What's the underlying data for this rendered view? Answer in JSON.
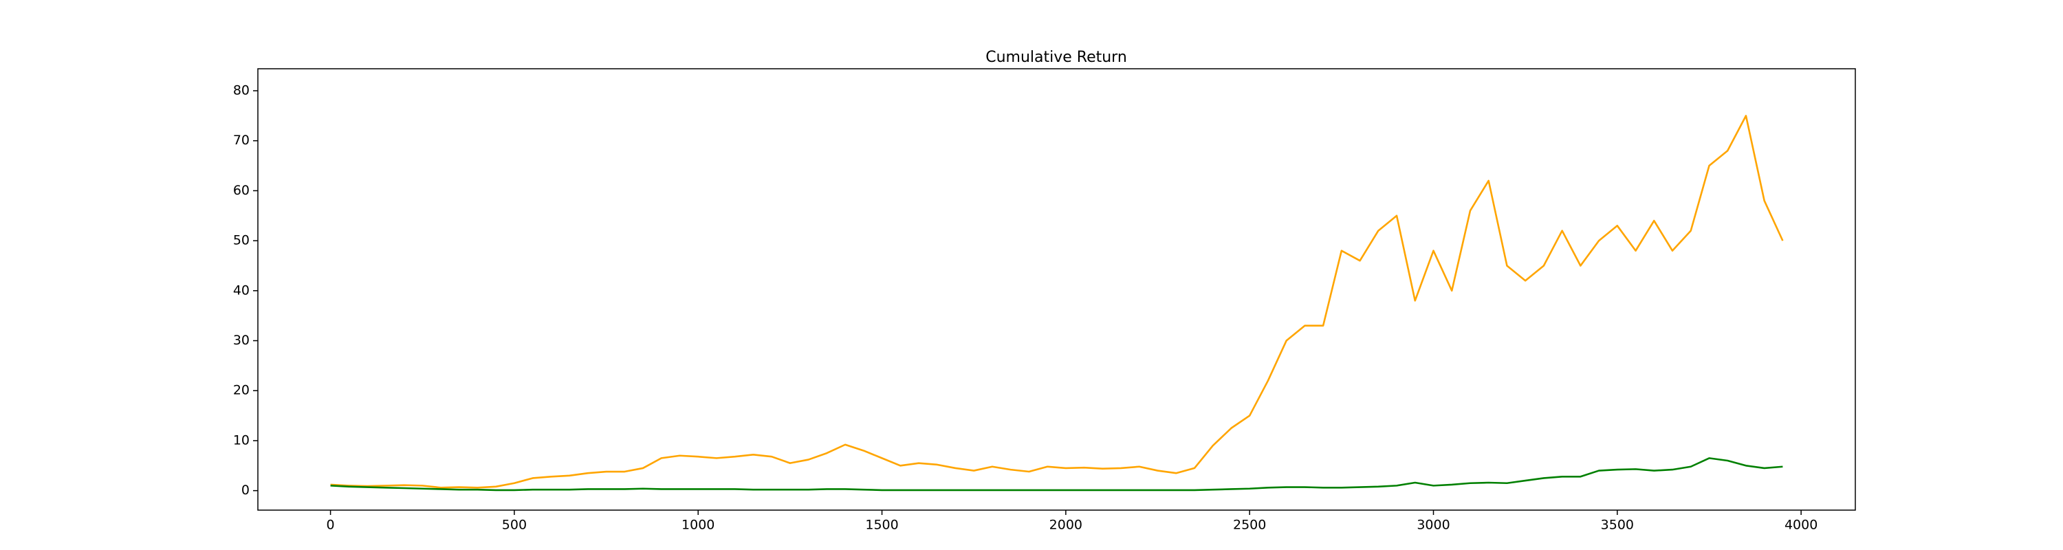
{
  "chart_data": {
    "type": "line",
    "title": "Cumulative Return",
    "x": [
      0,
      50,
      100,
      150,
      200,
      250,
      300,
      350,
      400,
      450,
      500,
      550,
      600,
      650,
      700,
      750,
      800,
      850,
      900,
      950,
      1000,
      1050,
      1100,
      1150,
      1200,
      1250,
      1300,
      1350,
      1400,
      1450,
      1500,
      1550,
      1600,
      1650,
      1700,
      1750,
      1800,
      1850,
      1900,
      1950,
      2000,
      2050,
      2100,
      2150,
      2200,
      2250,
      2300,
      2350,
      2400,
      2450,
      2500,
      2550,
      2600,
      2650,
      2700,
      2750,
      2800,
      2850,
      2900,
      2950,
      3000,
      3050,
      3100,
      3150,
      3200,
      3250,
      3300,
      3350,
      3400,
      3450,
      3500,
      3550,
      3600,
      3650,
      3700,
      3750,
      3800,
      3850,
      3900,
      3950
    ],
    "series": [
      {
        "color": "orange",
        "values": [
          1.2,
          1.0,
          0.9,
          1.0,
          1.1,
          1.0,
          0.6,
          0.7,
          0.6,
          0.8,
          1.5,
          2.5,
          2.8,
          3.0,
          3.5,
          3.8,
          3.8,
          4.5,
          6.5,
          7.0,
          6.8,
          6.5,
          6.8,
          7.2,
          6.8,
          5.5,
          6.2,
          7.5,
          9.2,
          8.0,
          6.5,
          5.0,
          5.5,
          5.2,
          4.5,
          4.0,
          4.8,
          4.2,
          3.8,
          4.8,
          4.5,
          4.6,
          4.4,
          4.5,
          4.8,
          4.0,
          3.5,
          4.5,
          9.0,
          12.5,
          15,
          22,
          30,
          33,
          33,
          48,
          46,
          52,
          55,
          38,
          48,
          40,
          56,
          62,
          45,
          42,
          45,
          52,
          45,
          50,
          53,
          48,
          54,
          48,
          52,
          65,
          68,
          75,
          58,
          50
        ]
      },
      {
        "color": "green",
        "values": [
          1.0,
          0.8,
          0.7,
          0.6,
          0.5,
          0.4,
          0.3,
          0.2,
          0.2,
          0.1,
          0.1,
          0.2,
          0.2,
          0.2,
          0.3,
          0.3,
          0.3,
          0.4,
          0.3,
          0.3,
          0.3,
          0.3,
          0.3,
          0.2,
          0.2,
          0.2,
          0.2,
          0.3,
          0.3,
          0.2,
          0.1,
          0.1,
          0.1,
          0.1,
          0.1,
          0.1,
          0.1,
          0.1,
          0.1,
          0.1,
          0.1,
          0.1,
          0.1,
          0.1,
          0.1,
          0.1,
          0.1,
          0.1,
          0.2,
          0.3,
          0.4,
          0.6,
          0.7,
          0.7,
          0.6,
          0.6,
          0.7,
          0.8,
          1.0,
          1.6,
          1.0,
          1.2,
          1.5,
          1.6,
          1.5,
          2.0,
          2.5,
          2.8,
          2.8,
          4.0,
          4.2,
          4.3,
          4.0,
          4.2,
          4.8,
          6.5,
          6.0,
          5.0,
          4.5,
          4.8
        ]
      }
    ],
    "xlim": [
      -197.5,
      4147.5
    ],
    "xticks": [
      0,
      500,
      1000,
      1500,
      2000,
      2500,
      3000,
      3500,
      4000
    ],
    "ylim": [
      -3.9,
      84.4
    ],
    "yticks": [
      0,
      10,
      20,
      30,
      40,
      50,
      60,
      70,
      80
    ]
  }
}
